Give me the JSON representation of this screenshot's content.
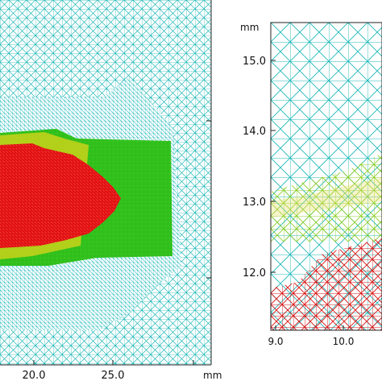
{
  "left_panel": {
    "x_tick_labels": [
      "20.0",
      "25.0"
    ],
    "x_unit": "mm"
  },
  "right_panel": {
    "y_unit": "mm",
    "y_tick_labels": [
      "15.0",
      "14.0",
      "13.0",
      "12.0"
    ],
    "x_tick_labels": [
      "9.0",
      "10.0"
    ]
  },
  "colors": {
    "mesh": "#1fb8b8",
    "green": "#2fbf1a",
    "yellow": "#d8d21a",
    "red": "#e10a0a",
    "axis": "#222222"
  }
}
